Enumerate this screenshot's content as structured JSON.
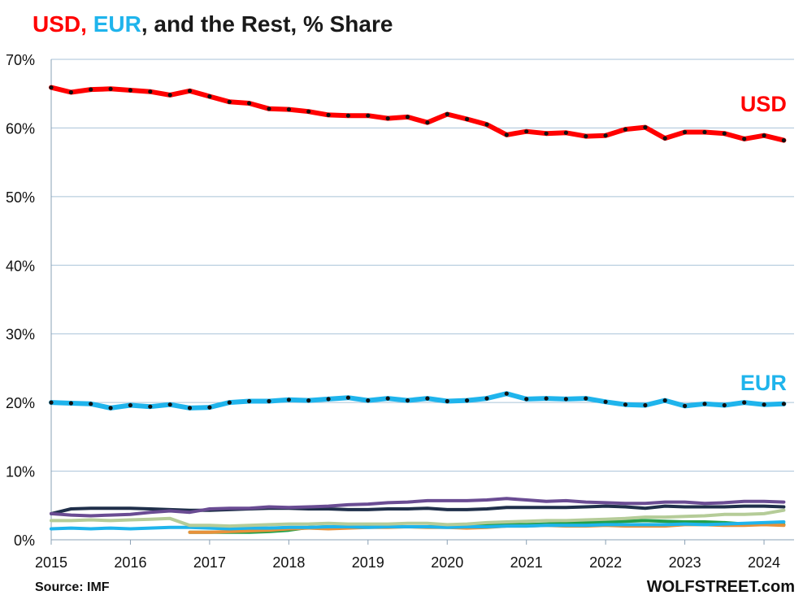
{
  "title": {
    "usd": "USD,",
    "eur": "EUR",
    "rest": ", and the Rest, % Share"
  },
  "source": "Source: IMF",
  "brand": "WOLFSTREET.com",
  "colors": {
    "usd": "#ff0000",
    "eur": "#1fb4ec",
    "grid": "#a9c3d8",
    "marker": "#111111"
  },
  "chart_data": {
    "type": "line",
    "ylim": [
      0,
      70
    ],
    "xlim": [
      2015,
      2024.3
    ],
    "grid": true,
    "y_ticks": [
      0,
      10,
      20,
      30,
      40,
      50,
      60,
      70
    ],
    "y_tick_labels": [
      "0%",
      "10%",
      "20%",
      "30%",
      "40%",
      "50%",
      "60%",
      "70%"
    ],
    "x_ticks": [
      2015,
      2016,
      2017,
      2018,
      2019,
      2020,
      2021,
      2022,
      2023,
      2024
    ],
    "x_tick_labels": [
      "2015",
      "2016",
      "2017",
      "2018",
      "2019",
      "2020",
      "2021",
      "2022",
      "2023",
      "2024"
    ],
    "series": [
      {
        "name": "USD",
        "color": "#ff0000",
        "markers": true,
        "label_pos": [
          2023.7,
          62.4
        ],
        "start": 2015.0,
        "step": 0.25,
        "values": [
          65.9,
          65.2,
          65.6,
          65.7,
          65.5,
          65.3,
          64.8,
          65.4,
          64.6,
          63.8,
          63.6,
          62.8,
          62.7,
          62.4,
          61.9,
          61.8,
          61.8,
          61.4,
          61.6,
          60.8,
          62.0,
          61.3,
          60.5,
          59.0,
          59.5,
          59.2,
          59.3,
          58.8,
          58.9,
          59.8,
          60.1,
          58.5,
          59.4,
          59.4,
          59.2,
          58.4,
          58.9,
          58.2
        ]
      },
      {
        "name": "EUR",
        "color": "#1fb4ec",
        "markers": true,
        "label_pos": [
          2023.7,
          21.8
        ],
        "start": 2015.0,
        "step": 0.25,
        "values": [
          20.0,
          19.9,
          19.8,
          19.2,
          19.6,
          19.4,
          19.7,
          19.2,
          19.3,
          20.0,
          20.2,
          20.2,
          20.4,
          20.3,
          20.5,
          20.7,
          20.3,
          20.6,
          20.3,
          20.6,
          20.2,
          20.3,
          20.6,
          21.3,
          20.5,
          20.6,
          20.5,
          20.6,
          20.1,
          19.7,
          19.6,
          20.3,
          19.5,
          19.8,
          19.6,
          20.0,
          19.7,
          19.8
        ]
      },
      {
        "color": "#6a4c93",
        "start": 2015.0,
        "step": 0.25,
        "values": [
          3.8,
          3.6,
          3.5,
          3.6,
          3.7,
          4.0,
          4.2,
          4.0,
          4.5,
          4.6,
          4.6,
          4.8,
          4.7,
          4.8,
          4.9,
          5.1,
          5.2,
          5.4,
          5.5,
          5.7,
          5.7,
          5.7,
          5.8,
          6.0,
          5.8,
          5.6,
          5.7,
          5.5,
          5.4,
          5.3,
          5.3,
          5.5,
          5.5,
          5.3,
          5.4,
          5.6,
          5.6,
          5.5
        ]
      },
      {
        "color": "#1f2f4a",
        "start": 2015.0,
        "step": 0.25,
        "values": [
          3.8,
          4.5,
          4.6,
          4.6,
          4.6,
          4.5,
          4.4,
          4.3,
          4.3,
          4.4,
          4.5,
          4.6,
          4.6,
          4.5,
          4.5,
          4.4,
          4.4,
          4.5,
          4.5,
          4.6,
          4.4,
          4.4,
          4.5,
          4.7,
          4.7,
          4.7,
          4.7,
          4.8,
          4.9,
          4.8,
          4.6,
          4.9,
          4.8,
          4.8,
          4.8,
          4.9,
          4.9,
          4.8
        ]
      },
      {
        "color": "#b5cc98",
        "start": 2015.0,
        "step": 0.25,
        "values": [
          2.8,
          2.8,
          2.9,
          2.8,
          2.9,
          3.0,
          3.1,
          2.1,
          2.1,
          2.0,
          2.1,
          2.2,
          2.3,
          2.3,
          2.4,
          2.3,
          2.3,
          2.3,
          2.4,
          2.4,
          2.2,
          2.3,
          2.5,
          2.6,
          2.7,
          2.8,
          2.8,
          2.9,
          3.0,
          3.1,
          3.3,
          3.3,
          3.4,
          3.5,
          3.7,
          3.7,
          3.8,
          4.3
        ]
      },
      {
        "color": "#1fb4ec",
        "start": 2015.0,
        "step": 0.25,
        "values": [
          1.6,
          1.7,
          1.6,
          1.7,
          1.6,
          1.7,
          1.8,
          1.8,
          1.7,
          1.6,
          1.7,
          1.7,
          1.8,
          1.8,
          1.9,
          1.9,
          1.8,
          1.9,
          1.9,
          1.9,
          1.8,
          1.9,
          1.9,
          2.0,
          2.0,
          2.1,
          2.1,
          2.1,
          2.2,
          2.2,
          2.2,
          2.2,
          2.3,
          2.2,
          2.3,
          2.4,
          2.5,
          2.6
        ]
      },
      {
        "color": "#e8913a",
        "start": 2016.75,
        "step": 0.25,
        "values": [
          1.1,
          1.1,
          1.2,
          1.3,
          1.4,
          1.6,
          1.7,
          1.6,
          1.7,
          1.8,
          1.8,
          1.9,
          1.8,
          1.8,
          1.7,
          1.8,
          2.0,
          2.0,
          2.1,
          2.0,
          2.0,
          2.1,
          2.0,
          2.0,
          2.0,
          2.2,
          2.2,
          2.1,
          2.1,
          2.2,
          2.1
        ]
      },
      {
        "color": "#21a04a",
        "start": 2016.75,
        "step": 0.25,
        "values": [
          1.1,
          1.1,
          1.1,
          1.1,
          1.2,
          1.4,
          1.8,
          1.9,
          1.9,
          1.9,
          1.9,
          1.9,
          1.9,
          2.0,
          2.0,
          2.1,
          2.2,
          2.2,
          2.3,
          2.4,
          2.5,
          2.6,
          2.7,
          2.8,
          2.7,
          2.6,
          2.6,
          2.5,
          2.3,
          2.3,
          2.2
        ]
      }
    ]
  }
}
